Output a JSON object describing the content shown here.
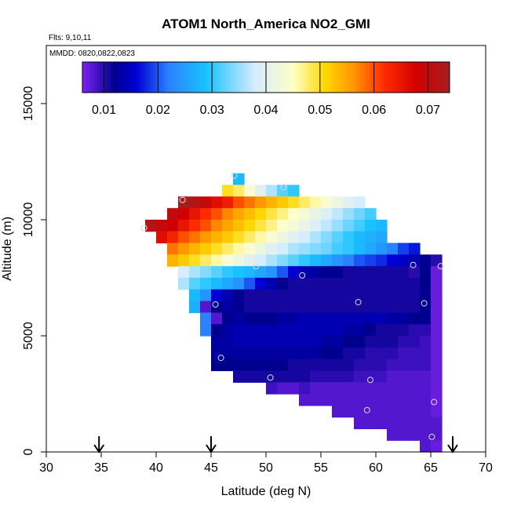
{
  "chart_data": {
    "type": "heatmap",
    "title": "ATOM1 North_America NO2_GMI",
    "flights_note": "Flts: 9,10,11",
    "dates_note": "MMDD: 0820,0822,0823",
    "xlabel": "Latitude (deg N)",
    "ylabel": "Altitude (m)",
    "xlim": [
      30,
      70
    ],
    "ylim": [
      0,
      17500
    ],
    "x_ticks": [
      30,
      35,
      40,
      45,
      50,
      55,
      60,
      65,
      70
    ],
    "y_ticks": [
      0,
      5000,
      10000,
      15000
    ],
    "y_tick_labels": [
      "0",
      "5000",
      "10000",
      "15000"
    ],
    "colorbar": {
      "range": [
        0.006,
        0.074
      ],
      "ticks": [
        0.01,
        0.02,
        0.03,
        0.04,
        0.05,
        0.06,
        0.07
      ],
      "tick_labels": [
        "0.01",
        "0.02",
        "0.03",
        "0.04",
        "0.05",
        "0.06",
        "0.07"
      ],
      "colors": [
        "#7b22ee",
        "#00008f",
        "#0000d4",
        "#2a82ff",
        "#19c3ff",
        "#d6ecff",
        "#ffffc8",
        "#ffd700",
        "#ff9900",
        "#ff2a00",
        "#d10000",
        "#a51e1e"
      ],
      "color_stops": [
        0.006,
        0.012,
        0.016,
        0.022,
        0.029,
        0.038,
        0.045,
        0.051,
        0.056,
        0.062,
        0.068,
        0.074
      ]
    },
    "flight_track_latitudes": [
      34.8,
      45.0,
      67.0
    ],
    "cell_size": {
      "lat": 1.0,
      "alt": 500
    },
    "rows": [
      {
        "alt": 11750,
        "lat_start": 47,
        "values": [
          0.028
        ]
      },
      {
        "alt": 11250,
        "lat_start": 46,
        "values": [
          0.05,
          0.048,
          0.044,
          0.04,
          0.036,
          0.032,
          0.03
        ]
      },
      {
        "alt": 10750,
        "lat_start": 42,
        "values": [
          0.074,
          0.072,
          0.07,
          0.066,
          0.064,
          0.06,
          0.058,
          0.056,
          0.054,
          0.052,
          0.05,
          0.048,
          0.046,
          0.044,
          0.042,
          0.04,
          0.038
        ]
      },
      {
        "alt": 10250,
        "lat_start": 41,
        "values": [
          0.07,
          0.068,
          0.065,
          0.062,
          0.06,
          0.057,
          0.055,
          0.053,
          0.051,
          0.049,
          0.047,
          0.045,
          0.043,
          0.041,
          0.039,
          0.037,
          0.035,
          0.033,
          0.031
        ]
      },
      {
        "alt": 9750,
        "lat_start": 39,
        "values": [
          0.072,
          0.07,
          0.068,
          0.065,
          0.062,
          0.06,
          0.057,
          0.055,
          0.053,
          0.051,
          0.049,
          0.047,
          0.045,
          0.043,
          0.041,
          0.039,
          0.037,
          0.035,
          0.033,
          0.031,
          0.029,
          0.028
        ]
      },
      {
        "alt": 9250,
        "lat_start": 40,
        "values": [
          0.066,
          0.063,
          0.06,
          0.058,
          0.056,
          0.054,
          0.052,
          0.05,
          0.048,
          0.046,
          0.044,
          0.042,
          0.04,
          0.038,
          0.036,
          0.034,
          0.032,
          0.03,
          0.028,
          0.027,
          0.026
        ]
      },
      {
        "alt": 8750,
        "lat_start": 41,
        "values": [
          0.058,
          0.056,
          0.054,
          0.052,
          0.05,
          0.048,
          0.046,
          0.044,
          0.042,
          0.04,
          0.038,
          0.036,
          0.035,
          0.034,
          0.033,
          0.031,
          0.03,
          0.028,
          0.026,
          0.024,
          0.022,
          0.019,
          0.017
        ]
      },
      {
        "alt": 8250,
        "lat_start": 41,
        "values": [
          0.054,
          0.052,
          0.05,
          0.048,
          0.046,
          0.044,
          0.042,
          0.04,
          0.038,
          0.036,
          0.034,
          0.032,
          0.03,
          0.028,
          0.026,
          0.024,
          0.022,
          0.02,
          0.019,
          0.018,
          0.016,
          0.015,
          0.014,
          0.012,
          0.01
        ]
      },
      {
        "alt": 7750,
        "lat_start": 42,
        "values": [
          0.038,
          0.036,
          0.034,
          0.032,
          0.03,
          0.029,
          0.028,
          0.026,
          0.024,
          0.02,
          0.016,
          0.014,
          0.013,
          0.012,
          0.012,
          0.011,
          0.011,
          0.011,
          0.011,
          0.011,
          0.011,
          0.01,
          0.012,
          0.007
        ]
      },
      {
        "alt": 7250,
        "lat_start": 42,
        "values": [
          0.036,
          0.032,
          0.03,
          0.028,
          0.026,
          0.024,
          0.02,
          0.016,
          0.014,
          0.012,
          0.011,
          0.011,
          0.011,
          0.011,
          0.011,
          0.011,
          0.011,
          0.011,
          0.011,
          0.011,
          0.011,
          0.011,
          0.012,
          0.007
        ]
      },
      {
        "alt": 6750,
        "lat_start": 43,
        "values": [
          0.028,
          0.024,
          0.016,
          0.014,
          0.012,
          0.011,
          0.011,
          0.011,
          0.011,
          0.011,
          0.011,
          0.011,
          0.011,
          0.011,
          0.011,
          0.011,
          0.011,
          0.011,
          0.011,
          0.011,
          0.011,
          0.012,
          0.007
        ]
      },
      {
        "alt": 6250,
        "lat_start": 43,
        "values": [
          0.027,
          0.008,
          0.012,
          0.013,
          0.012,
          0.011,
          0.011,
          0.011,
          0.011,
          0.011,
          0.011,
          0.011,
          0.011,
          0.011,
          0.011,
          0.011,
          0.011,
          0.011,
          0.011,
          0.011,
          0.011,
          0.012,
          0.007
        ]
      },
      {
        "alt": 5750,
        "lat_start": 44,
        "values": [
          0.022,
          0.008,
          0.012,
          0.013,
          0.012,
          0.012,
          0.012,
          0.013,
          0.013,
          0.014,
          0.014,
          0.014,
          0.014,
          0.014,
          0.014,
          0.014,
          0.014,
          0.013,
          0.013,
          0.012,
          0.012,
          0.007
        ]
      },
      {
        "alt": 5250,
        "lat_start": 44,
        "values": [
          0.022,
          0.012,
          0.013,
          0.014,
          0.014,
          0.014,
          0.014,
          0.014,
          0.014,
          0.014,
          0.014,
          0.014,
          0.014,
          0.013,
          0.013,
          0.012,
          0.011,
          0.011,
          0.011,
          0.01,
          0.01,
          0.007
        ]
      },
      {
        "alt": 4750,
        "lat_start": 45,
        "values": [
          0.013,
          0.013,
          0.014,
          0.014,
          0.014,
          0.014,
          0.014,
          0.014,
          0.014,
          0.014,
          0.013,
          0.013,
          0.012,
          0.012,
          0.011,
          0.011,
          0.011,
          0.01,
          0.01,
          0.009,
          0.007
        ]
      },
      {
        "alt": 4250,
        "lat_start": 45,
        "values": [
          0.013,
          0.013,
          0.013,
          0.013,
          0.013,
          0.013,
          0.013,
          0.013,
          0.013,
          0.013,
          0.012,
          0.012,
          0.011,
          0.011,
          0.01,
          0.01,
          0.01,
          0.009,
          0.009,
          0.009,
          0.007
        ]
      },
      {
        "alt": 3750,
        "lat_start": 45,
        "values": [
          0.012,
          0.012,
          0.012,
          0.012,
          0.012,
          0.012,
          0.012,
          0.011,
          0.011,
          0.011,
          0.011,
          0.011,
          0.011,
          0.01,
          0.01,
          0.01,
          0.009,
          0.009,
          0.009,
          0.009,
          0.007
        ]
      },
      {
        "alt": 3250,
        "lat_start": 47,
        "values": [
          0.011,
          0.011,
          0.011,
          0.011,
          0.011,
          0.011,
          0.011,
          0.01,
          0.01,
          0.01,
          0.01,
          0.009,
          0.009,
          0.009,
          0.008,
          0.008,
          0.008,
          0.008,
          0.007
        ]
      },
      {
        "alt": 2750,
        "lat_start": 50,
        "values": [
          0.009,
          0.008,
          0.008,
          0.009,
          0.008,
          0.008,
          0.008,
          0.008,
          0.008,
          0.008,
          0.008,
          0.008,
          0.008,
          0.008,
          0.008,
          0.007
        ]
      },
      {
        "alt": 2250,
        "lat_start": 53,
        "values": [
          0.008,
          0.008,
          0.008,
          0.008,
          0.008,
          0.008,
          0.008,
          0.008,
          0.008,
          0.008,
          0.008,
          0.008,
          0.007
        ]
      },
      {
        "alt": 1750,
        "lat_start": 56,
        "values": [
          0.008,
          0.008,
          0.008,
          0.008,
          0.008,
          0.008,
          0.008,
          0.008,
          0.008,
          0.007
        ]
      },
      {
        "alt": 1250,
        "lat_start": 58,
        "values": [
          0.008,
          0.008,
          0.008,
          0.008,
          0.008,
          0.008,
          0.008,
          0.008
        ]
      },
      {
        "alt": 750,
        "lat_start": 61,
        "values": [
          0.008,
          0.008,
          0.008,
          0.008,
          0.008
        ]
      },
      {
        "alt": 250,
        "lat_start": 64,
        "values": [
          0.008,
          0.007
        ]
      }
    ],
    "markers": [
      [
        47.1,
        11900
      ],
      [
        51.6,
        11400
      ],
      [
        42.4,
        10850
      ],
      [
        38.9,
        9650
      ],
      [
        49.1,
        8000
      ],
      [
        53.3,
        7600
      ],
      [
        63.4,
        8050
      ],
      [
        65.9,
        8000
      ],
      [
        45.4,
        6350
      ],
      [
        58.4,
        6450
      ],
      [
        64.4,
        6400
      ],
      [
        45.9,
        4050
      ],
      [
        50.4,
        3200
      ],
      [
        59.5,
        3100
      ],
      [
        65.3,
        2150
      ],
      [
        59.2,
        1800
      ],
      [
        65.1,
        650
      ]
    ]
  }
}
